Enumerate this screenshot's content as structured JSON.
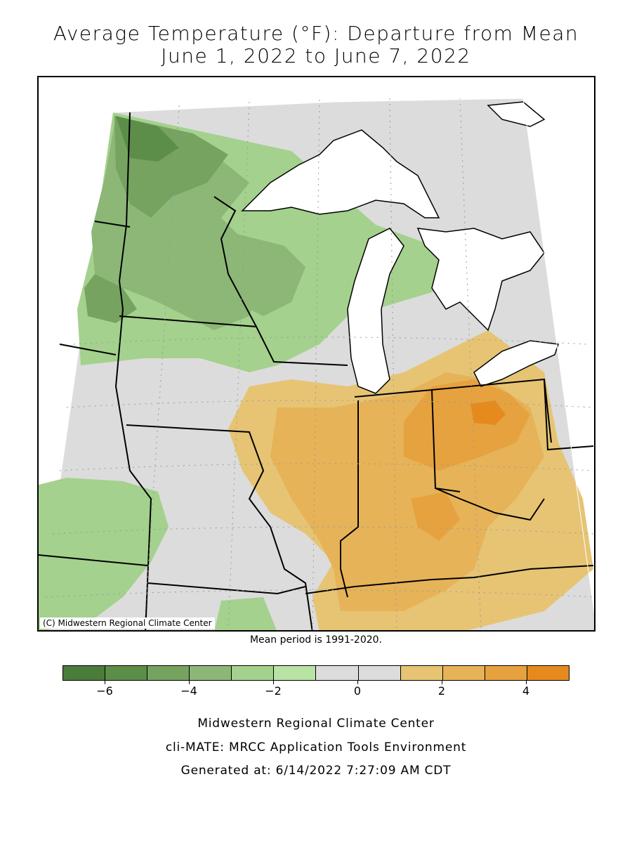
{
  "title_line1": "Average Temperature (°F): Departure from Mean",
  "title_line2": "June 1, 2022 to June 7, 2022",
  "copyright": "(C) Midwestern Regional Climate Center",
  "mean_period": "Mean period is 1991-2020.",
  "legend": {
    "colors": [
      "#4a7c3a",
      "#5c8e4a",
      "#76a35f",
      "#8cb777",
      "#a4d18d",
      "#b8e3a4",
      "#dcdcdc",
      "#dcdcdc",
      "#e6c474",
      "#e6b358",
      "#e6a23f",
      "#e68a1e"
    ],
    "bins": [
      -7,
      -6,
      -5,
      -4,
      -3,
      -2,
      -1,
      0,
      1,
      2,
      3,
      4,
      5
    ],
    "tick_labels": [
      "-6",
      "-4",
      "-2",
      "0",
      "2",
      "4"
    ],
    "tick_values": [
      -6,
      -4,
      -2,
      0,
      2,
      4
    ]
  },
  "footer": {
    "line1": "Midwestern Regional Climate Center",
    "line2": "cli-MATE: MRCC Application Tools Environment",
    "line3": "Generated at: 6/14/2022 7:27:09 AM CDT"
  }
}
